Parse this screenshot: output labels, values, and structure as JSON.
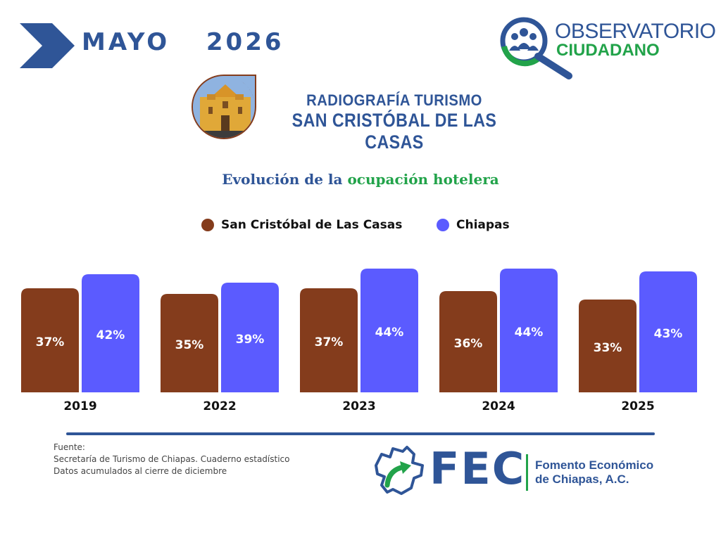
{
  "header": {
    "month_title": "MAYO  2026",
    "logo": {
      "line1": "OBSERVATORIO",
      "line2": "CIUDADANO"
    }
  },
  "subtitle": {
    "line1": "RADIOGRAFÍA TURISMO",
    "line2": "SAN CRISTÓBAL DE LAS CASAS"
  },
  "chart_title": {
    "part1": "Evolución de la",
    "part2": "ocupación hotelera"
  },
  "chart_data": {
    "type": "bar",
    "categories": [
      "2019",
      "2022",
      "2023",
      "2024",
      "2025"
    ],
    "series": [
      {
        "name": "San Cristóbal de Las Casas",
        "values": [
          37,
          35,
          37,
          36,
          33
        ],
        "labels": [
          "37%",
          "35%",
          "37%",
          "36%",
          "33%"
        ],
        "color": "#843c1c"
      },
      {
        "name": "Chiapas",
        "values": [
          42,
          39,
          44,
          44,
          43
        ],
        "labels": [
          "42%",
          "39%",
          "44%",
          "44%",
          "43%"
        ],
        "color": "#5b5bff"
      }
    ],
    "legend_position": "top-center",
    "grid": false
  },
  "source": {
    "label": "Fuente:",
    "line1": "Secretaría de Turismo de Chiapas. Cuaderno estadístico",
    "line2": "Datos acumulados al cierre de diciembre"
  },
  "footer_logo": {
    "letters": "FEC",
    "name_line1": "Fomento Económico",
    "name_line2": "de Chiapas, A.C."
  },
  "colors": {
    "primary": "#2f5597",
    "green": "#22a34a",
    "brown": "#843c1c",
    "blue": "#5b5bff"
  }
}
